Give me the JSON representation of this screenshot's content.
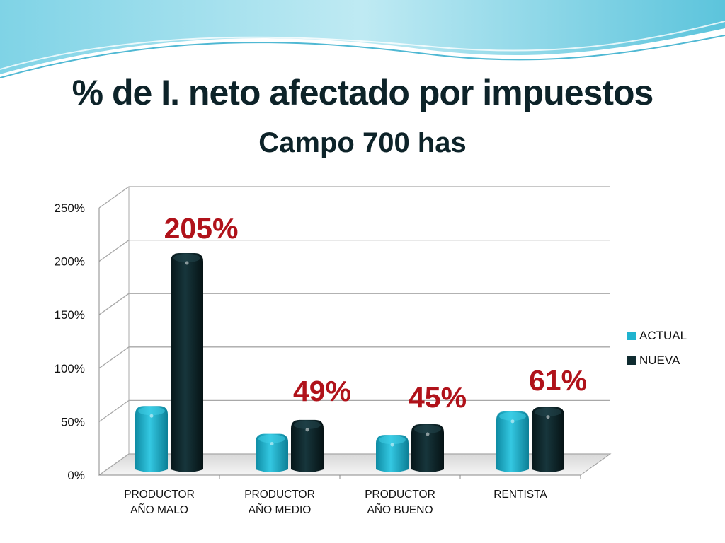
{
  "title": "% de I. neto afectado por impuestos",
  "subtitle": "Campo 700 has",
  "colors": {
    "actual": "#1fb3cf",
    "nueva": "#0f2b30",
    "label": "#b0121a",
    "title": "#0d2329"
  },
  "chart_data": {
    "type": "bar",
    "categories": [
      [
        "PRODUCTOR",
        "AÑO MALO"
      ],
      [
        "PRODUCTOR",
        "AÑO MEDIO"
      ],
      [
        "PRODUCTOR",
        "AÑO BUENO"
      ],
      [
        "RENTISTA"
      ]
    ],
    "series": [
      {
        "name": "ACTUAL",
        "values": [
          62,
          36,
          35,
          57
        ]
      },
      {
        "name": "NUEVA",
        "values": [
          205,
          49,
          45,
          61
        ]
      }
    ],
    "data_labels": [
      "205%",
      "49%",
      "45%",
      "61%"
    ],
    "y_ticks": [
      "0%",
      "50%",
      "100%",
      "150%",
      "200%",
      "250%"
    ],
    "ylim": [
      0,
      250
    ],
    "grid": true,
    "legend_position": "right"
  }
}
